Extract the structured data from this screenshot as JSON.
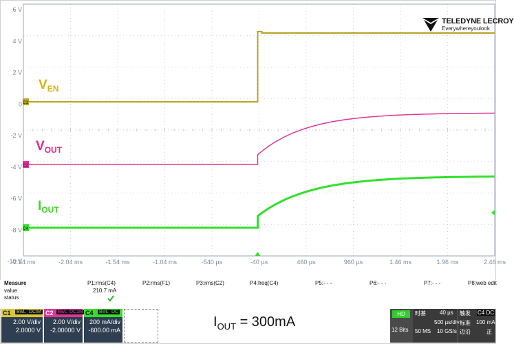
{
  "scope": {
    "y_axis_labels": [
      "6 V",
      "4 V",
      "2 V",
      "0",
      "-2 V",
      "-4 V",
      "-6 V",
      "-8 V",
      "-10 V"
    ],
    "x_axis_labels": [
      "-2.54 ms",
      "-2.04 ms",
      "-1.54 ms",
      "-1.04 ms",
      "-540 µs",
      "-40 µs",
      "460 µs",
      "960 µs",
      "1.46 ms",
      "1.96 ms",
      "2.46 ms"
    ],
    "channel_markers": [
      "C1",
      "C2",
      "C4"
    ],
    "annotations": {
      "ven_main": "V",
      "ven_sub": "EN",
      "vout_main": "V",
      "vout_sub": "OUT",
      "iout_main": "I",
      "iout_sub": "OUT"
    },
    "colors": {
      "background": "#ffffff",
      "grid": "#c8d0d8",
      "c1": "#b3a51f",
      "c2": "#e0359a",
      "c4": "#33e02a",
      "c1_label": "#d6b40f",
      "c2_label": "#e4238f",
      "c4_label": "#3ed428"
    }
  },
  "logo": {
    "line1": "TELEDYNE LECROY",
    "line2": "Everywhereyoulook",
    "icon": "teledyne-logo-icon"
  },
  "measure": {
    "header": "Measure",
    "row_labels": [
      "value",
      "status"
    ],
    "params": [
      "P1:rms(C4)",
      "P2:rms(F1)",
      "P3:rms(C2)",
      "P4:freq(C4)",
      "P5:- - -",
      "P6:- - -",
      "P7:- - -",
      "P8:web edit"
    ],
    "p1_value": "210.7 mA",
    "p1_status_icon": "checkmark-icon"
  },
  "channels": [
    {
      "name": "C1",
      "tags": [
        "BwL",
        "DCIM"
      ],
      "scale": "2.00 V/div",
      "offset": "2.0000 V",
      "color": "#b3a51f"
    },
    {
      "name": "C2",
      "tags": [
        "BwL",
        "DC1M"
      ],
      "scale": "2.00 V/div",
      "offset": "-2.00000 V",
      "color": "#e0359a"
    },
    {
      "name": "C4",
      "tags": [
        "BwL",
        "DC"
      ],
      "scale": "200 mA/div",
      "offset": "-600.00 mA",
      "color": "#33e02a"
    }
  ],
  "caption": {
    "main": "I",
    "sub": "OUT",
    "rest": " = 300mA"
  },
  "timebase": {
    "hd": "HD",
    "bits": "12 Bits",
    "label_timebase": "时基",
    "delay": "40 µs",
    "per_div": "500 µs/div",
    "samples": "50 MS",
    "rate": "10 GS/s",
    "label_trigger": "触发",
    "trigger_channel": "C4 DC",
    "trigger_mode": "标准",
    "trigger_slope": "边沿",
    "trigger_level": "100 mA",
    "trigger_polarity": "正"
  }
}
